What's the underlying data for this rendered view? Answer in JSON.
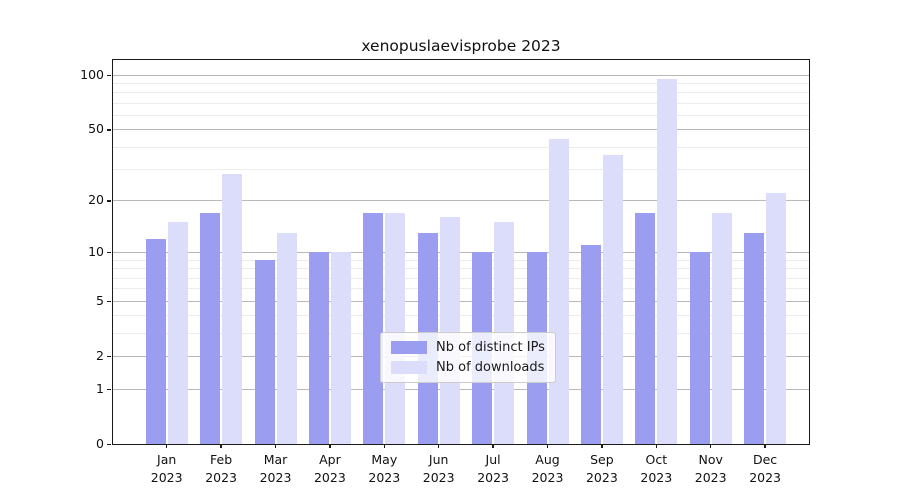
{
  "chart_data": {
    "type": "bar",
    "title": "xenopuslaevisprobe 2023",
    "categories": [
      {
        "label": "Jan",
        "year": "2023"
      },
      {
        "label": "Feb",
        "year": "2023"
      },
      {
        "label": "Mar",
        "year": "2023"
      },
      {
        "label": "Apr",
        "year": "2023"
      },
      {
        "label": "May",
        "year": "2023"
      },
      {
        "label": "Jun",
        "year": "2023"
      },
      {
        "label": "Jul",
        "year": "2023"
      },
      {
        "label": "Aug",
        "year": "2023"
      },
      {
        "label": "Sep",
        "year": "2023"
      },
      {
        "label": "Oct",
        "year": "2023"
      },
      {
        "label": "Nov",
        "year": "2023"
      },
      {
        "label": "Dec",
        "year": "2023"
      }
    ],
    "series": [
      {
        "name": "Nb of distinct IPs",
        "color": "#9b9ef0",
        "values": [
          12,
          17,
          9,
          10,
          17,
          13,
          10,
          10,
          11,
          17,
          10,
          13
        ]
      },
      {
        "name": "Nb of downloads",
        "color": "#dcddfa",
        "values": [
          15,
          28,
          13,
          10,
          17,
          16,
          15,
          44,
          36,
          94,
          17,
          22
        ]
      }
    ],
    "yscale": "log1p",
    "ylim": [
      0,
      120
    ],
    "y_major_ticks": [
      0,
      1,
      2,
      5,
      10,
      20,
      50,
      100
    ],
    "y_minor_gridlines": [
      3,
      4,
      6,
      7,
      8,
      9,
      30,
      40,
      60,
      70,
      80,
      90
    ],
    "grid": "on",
    "legend_position": "lower center",
    "xlabel": "",
    "ylabel": ""
  }
}
